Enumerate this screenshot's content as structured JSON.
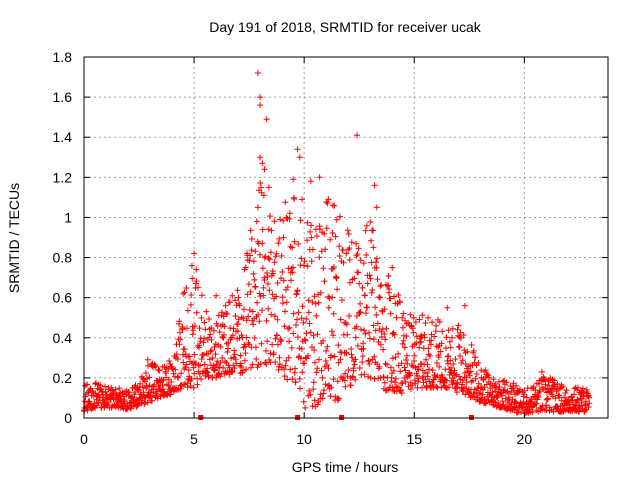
{
  "chart_data": {
    "type": "scatter",
    "title": "Day 191 of 2018, SRMTID for receiver ucak",
    "xlabel": "GPS time / hours",
    "ylabel": "SRMTID / TECUs",
    "xlim": [
      0,
      23.8
    ],
    "ylim": [
      0,
      1.8
    ],
    "xticks": [
      0,
      5,
      10,
      15,
      20
    ],
    "xtick_labels": [
      "0",
      "5",
      "10",
      "15",
      "20"
    ],
    "yticks": [
      0,
      0.2,
      0.4,
      0.6,
      0.8,
      1.0,
      1.2,
      1.4,
      1.6,
      1.8
    ],
    "ytick_labels": [
      "0",
      "0.2",
      "0.4",
      "0.6",
      "0.8",
      "1",
      "1.2",
      "1.4",
      "1.6",
      "1.8"
    ],
    "grid": true,
    "marker": "+",
    "color": "#ff0000",
    "baseline_markers_x": [
      5.3,
      9.7,
      11.7,
      17.6
    ],
    "envelope": [
      [
        0.0,
        0.03,
        0.16
      ],
      [
        0.5,
        0.05,
        0.19
      ],
      [
        1.0,
        0.05,
        0.16
      ],
      [
        1.5,
        0.05,
        0.15
      ],
      [
        2.0,
        0.04,
        0.15
      ],
      [
        2.5,
        0.06,
        0.18
      ],
      [
        3.0,
        0.08,
        0.28
      ],
      [
        3.5,
        0.1,
        0.25
      ],
      [
        4.0,
        0.12,
        0.3
      ],
      [
        4.5,
        0.15,
        0.62
      ],
      [
        5.0,
        0.15,
        0.8
      ],
      [
        5.5,
        0.2,
        0.55
      ],
      [
        6.0,
        0.2,
        0.52
      ],
      [
        6.5,
        0.22,
        0.58
      ],
      [
        7.0,
        0.2,
        0.65
      ],
      [
        7.5,
        0.25,
        0.92
      ],
      [
        8.0,
        0.25,
        1.2
      ],
      [
        8.5,
        0.28,
        1.0
      ],
      [
        9.0,
        0.22,
        1.05
      ],
      [
        9.5,
        0.15,
        1.15
      ],
      [
        10.0,
        0.05,
        0.95
      ],
      [
        10.5,
        0.05,
        1.05
      ],
      [
        11.0,
        0.1,
        1.1
      ],
      [
        11.5,
        0.08,
        1.05
      ],
      [
        12.0,
        0.15,
        0.95
      ],
      [
        12.5,
        0.2,
        0.9
      ],
      [
        13.0,
        0.2,
        1.0
      ],
      [
        13.5,
        0.15,
        0.78
      ],
      [
        14.0,
        0.12,
        0.7
      ],
      [
        14.5,
        0.12,
        0.55
      ],
      [
        15.0,
        0.15,
        0.5
      ],
      [
        15.5,
        0.15,
        0.52
      ],
      [
        16.0,
        0.15,
        0.5
      ],
      [
        16.5,
        0.15,
        0.45
      ],
      [
        17.0,
        0.12,
        0.48
      ],
      [
        17.5,
        0.1,
        0.4
      ],
      [
        18.0,
        0.08,
        0.26
      ],
      [
        18.5,
        0.06,
        0.22
      ],
      [
        19.0,
        0.05,
        0.2
      ],
      [
        19.5,
        0.03,
        0.18
      ],
      [
        20.0,
        0.02,
        0.14
      ],
      [
        20.5,
        0.03,
        0.18
      ],
      [
        21.0,
        0.03,
        0.22
      ],
      [
        21.5,
        0.03,
        0.18
      ],
      [
        22.0,
        0.03,
        0.15
      ],
      [
        22.5,
        0.03,
        0.16
      ],
      [
        23.0,
        0.03,
        0.15
      ]
    ],
    "outliers": [
      [
        7.9,
        1.72
      ],
      [
        8.0,
        1.6
      ],
      [
        8.0,
        1.56
      ],
      [
        8.3,
        1.49
      ],
      [
        8.0,
        1.3
      ],
      [
        8.1,
        1.27
      ],
      [
        8.2,
        1.24
      ],
      [
        9.7,
        1.34
      ],
      [
        9.8,
        1.3
      ],
      [
        12.4,
        1.41
      ],
      [
        13.2,
        1.16
      ],
      [
        10.7,
        1.2
      ],
      [
        10.3,
        1.18
      ],
      [
        11.3,
        1.06
      ],
      [
        13.3,
        1.05
      ],
      [
        11.1,
        1.09
      ],
      [
        9.5,
        1.19
      ],
      [
        9.9,
        1.09
      ],
      [
        7.9,
        1.05
      ],
      [
        8.4,
        1.15
      ],
      [
        5.0,
        0.82
      ],
      [
        4.9,
        0.76
      ],
      [
        5.1,
        0.74
      ],
      [
        6.0,
        0.61
      ],
      [
        4.5,
        0.62
      ],
      [
        16.5,
        0.55
      ],
      [
        17.3,
        0.56
      ],
      [
        20.8,
        0.23
      ],
      [
        2.9,
        0.29
      ],
      [
        14.0,
        0.75
      ]
    ],
    "n_generated_points": 1650,
    "series_end_hour": 22.95
  }
}
